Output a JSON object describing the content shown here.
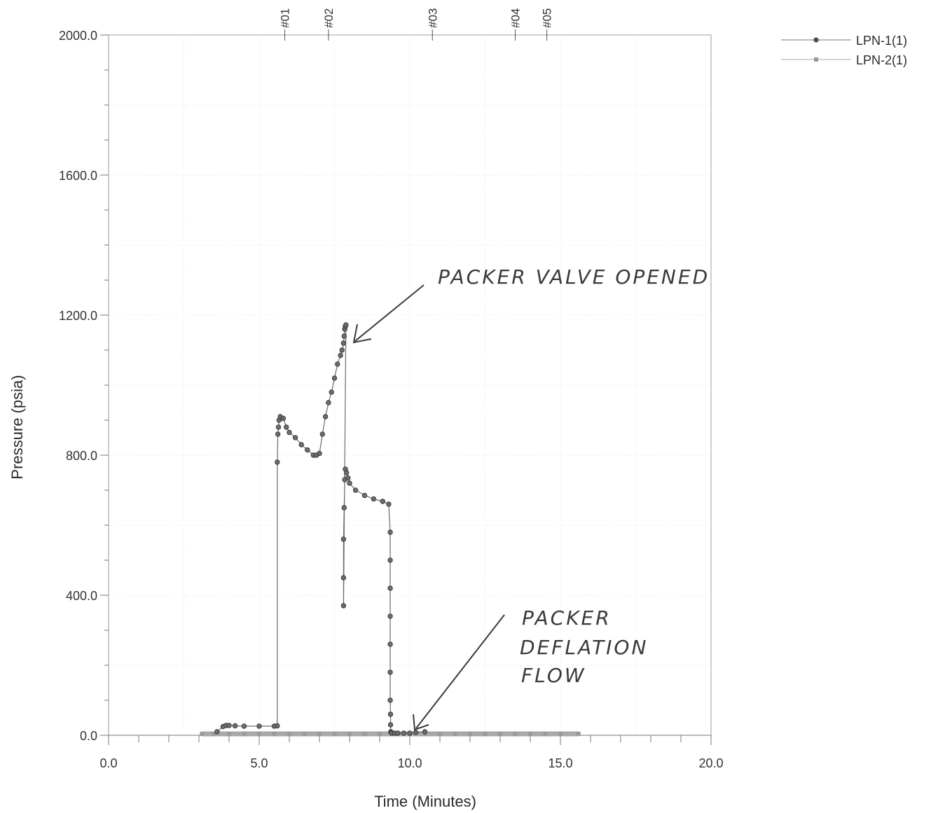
{
  "chart_data": {
    "type": "scatter",
    "xlabel": "Time (Minutes)",
    "ylabel": "Pressure (psia)",
    "xlim": [
      0,
      20
    ],
    "ylim": [
      0,
      2000
    ],
    "x_ticks": [
      0,
      5,
      10,
      15,
      20
    ],
    "x_tick_labels": [
      "0.0",
      "5.0",
      "10.0",
      "15.0",
      "20.0"
    ],
    "y_ticks": [
      0,
      400,
      800,
      1200,
      1600,
      2000
    ],
    "y_tick_labels": [
      "0.0",
      "400.0",
      "800.0",
      "1200.0",
      "1600.0",
      "2000.0"
    ],
    "grid": true,
    "legend_position": "top-right",
    "series": [
      {
        "name": "LPN-1(1)",
        "marker": "circle",
        "color": "#4d4d4d",
        "x": [
          3.6,
          3.8,
          3.9,
          4.0,
          4.2,
          4.5,
          5.0,
          5.5,
          5.6,
          5.6,
          5.62,
          5.64,
          5.66,
          5.7,
          5.8,
          5.9,
          6.0,
          6.2,
          6.4,
          6.6,
          6.8,
          6.9,
          7.0,
          7.1,
          7.2,
          7.3,
          7.4,
          7.5,
          7.6,
          7.7,
          7.75,
          7.8,
          7.82,
          7.84,
          7.86,
          7.88,
          7.8,
          7.8,
          7.8,
          7.82,
          7.84,
          7.86,
          7.9,
          7.95,
          8.0,
          8.2,
          8.5,
          8.8,
          9.1,
          9.3,
          9.35,
          9.35,
          9.35,
          9.35,
          9.35,
          9.35,
          9.35,
          9.36,
          9.36,
          9.37,
          9.38,
          9.4,
          9.5,
          9.6,
          9.8,
          10.0,
          10.2,
          10.5
        ],
        "y": [
          10,
          25,
          28,
          28,
          27,
          26,
          26,
          26,
          27,
          780,
          860,
          880,
          900,
          910,
          905,
          880,
          865,
          850,
          830,
          815,
          800,
          800,
          805,
          860,
          910,
          950,
          980,
          1020,
          1060,
          1085,
          1100,
          1120,
          1140,
          1160,
          1168,
          1172,
          370,
          450,
          560,
          650,
          730,
          760,
          750,
          735,
          720,
          700,
          685,
          675,
          668,
          660,
          580,
          500,
          420,
          340,
          260,
          180,
          100,
          60,
          30,
          10,
          8,
          6,
          6,
          6,
          6,
          6,
          8,
          10
        ]
      },
      {
        "name": "LPN-2(1)",
        "marker": "square",
        "color": "#9a9a9a",
        "x": [
          3.1,
          3.5,
          4.0,
          4.5,
          5.0,
          5.5,
          6.0,
          6.5,
          7.0,
          7.5,
          8.0,
          8.5,
          9.0,
          9.5,
          10.0,
          10.5,
          11.0,
          11.5,
          12.0,
          12.5,
          13.0,
          13.5,
          14.0,
          14.5,
          15.0,
          15.6
        ],
        "y": [
          4,
          4,
          4,
          4,
          4,
          4,
          4,
          4,
          4,
          4,
          4,
          4,
          4,
          4,
          4,
          4,
          4,
          4,
          4,
          4,
          4,
          4,
          4,
          4,
          4,
          4
        ]
      }
    ],
    "event_markers": [
      {
        "label": "#01",
        "x": 5.85
      },
      {
        "label": "#02",
        "x": 7.3
      },
      {
        "label": "#03",
        "x": 10.75
      },
      {
        "label": "#04",
        "x": 13.5
      },
      {
        "label": "#05",
        "x": 14.55
      }
    ],
    "annotations": [
      {
        "text": "PACKER VALVE OPENED"
      },
      {
        "text": "PACKER DEFLATION FLOW"
      }
    ]
  }
}
